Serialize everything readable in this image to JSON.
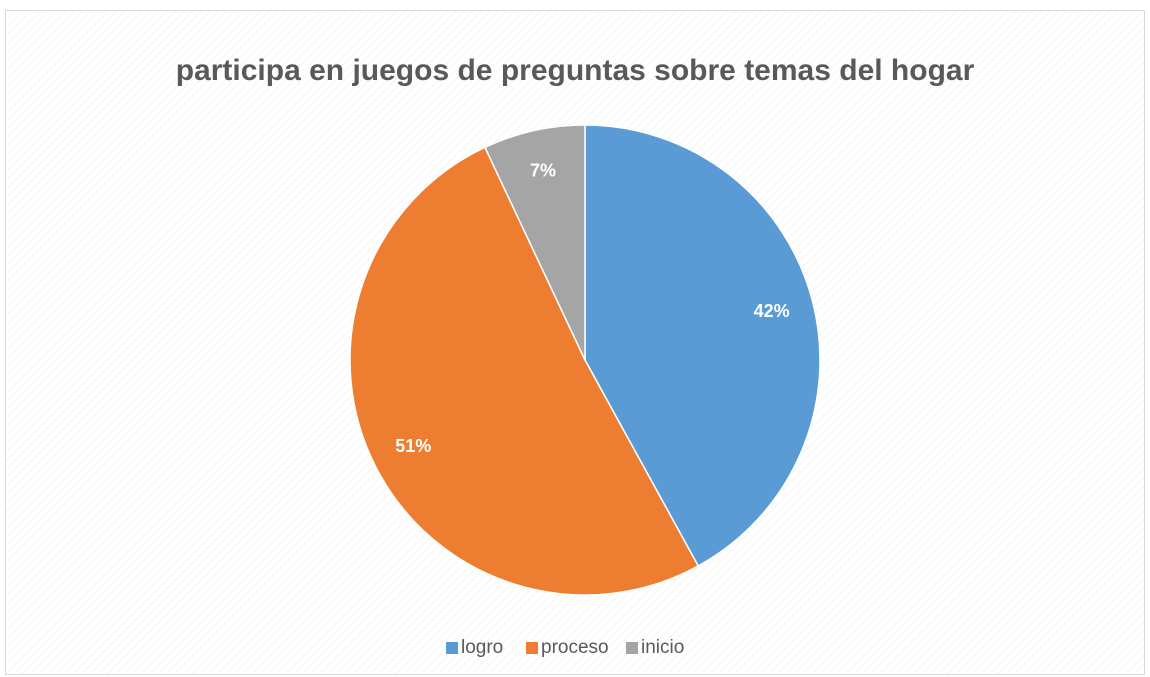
{
  "chart_data": {
    "type": "pie",
    "title": "participa en juegos de preguntas sobre temas del hogar",
    "categories": [
      "logro",
      "proceso",
      "inicio"
    ],
    "values": [
      42,
      51,
      7
    ],
    "value_labels": [
      "42%",
      "51%",
      "7%"
    ],
    "colors": [
      "#5b9bd5",
      "#ed7d31",
      "#a5a5a5"
    ],
    "legend": "bottom"
  }
}
